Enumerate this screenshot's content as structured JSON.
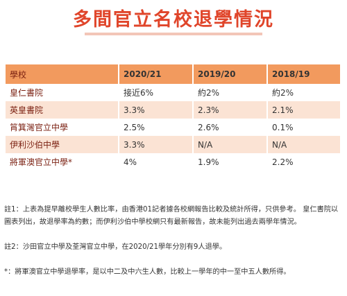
{
  "title": "多間官立名校退學情況",
  "table": {
    "headers": [
      "學校",
      "2020/21",
      "2019/20",
      "2018/19"
    ],
    "rows": [
      [
        "皇仁書院",
        "接近6%",
        "約2%",
        "約2%"
      ],
      [
        "英皇書院",
        "3.3%",
        "2.3%",
        "2.1%"
      ],
      [
        "筲箕灣官立中學",
        "2.5%",
        "2.6%",
        "0.1%"
      ],
      [
        "伊利沙伯中學",
        "3.3%",
        "N/A",
        "N/A"
      ],
      [
        "將軍澳官立中學*",
        "4%",
        "1.9%",
        "2.2%"
      ]
    ]
  },
  "notes": [
    "註1：上表為提早離校學生人數比率，由香港01記者據各校網報告比較及統計所得，只供參考。 皇仁書院以圖表列出，故退學率為約數；而伊利沙伯中學校網只有最新報告，故未能列出過去兩學年情況。",
    "註2：沙田官立中學及荃灣官立中學，在2020/21學年分別有9人退學。",
    "*：將軍澳官立中學退學率，是以中二及中六生人數，比較上一學年的中一至中五人數所得。"
  ]
}
